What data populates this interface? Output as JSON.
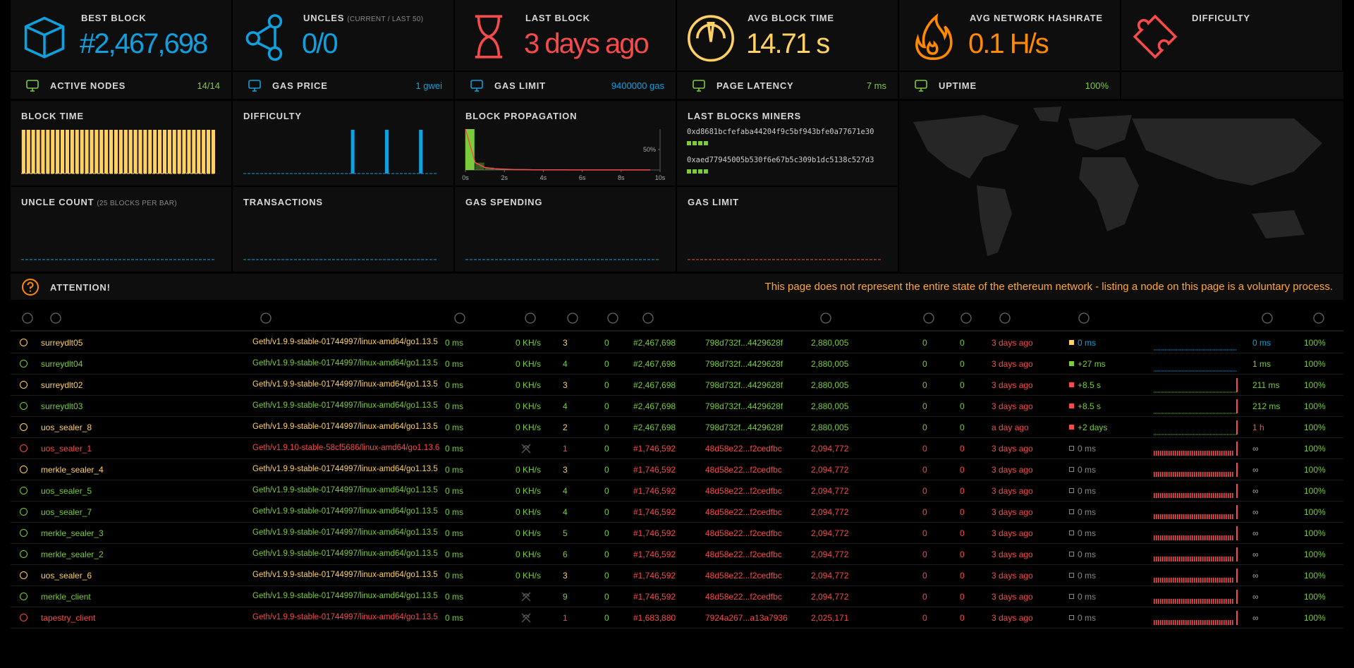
{
  "stats": [
    {
      "title": "BEST BLOCK",
      "value": "#2,467,698",
      "color": "#10a0de"
    },
    {
      "title": "UNCLES",
      "subtitle": "(CURRENT / LAST 50)",
      "value": "0/0",
      "color": "#10a0de"
    },
    {
      "title": "LAST BLOCK",
      "value": "3 days ago",
      "color": "#f74b4b"
    },
    {
      "title": "AVG BLOCK TIME",
      "value": "14.71 s",
      "color": "#ffd162"
    },
    {
      "title": "AVG NETWORK HASHRATE",
      "value": "0.1 H/s",
      "color": "#ff8a00"
    },
    {
      "title": "DIFFICULTY",
      "color": "#f74b4b"
    }
  ],
  "summary": [
    {
      "title": "ACTIVE NODES",
      "value": "14/14",
      "color": "#7bcc3a"
    },
    {
      "title": "GAS PRICE",
      "value": "1 gwei",
      "color": "#10a0de"
    },
    {
      "title": "GAS LIMIT",
      "value": "9400000 gas",
      "color": "#10a0de"
    },
    {
      "title": "PAGE LATENCY",
      "value": "7 ms",
      "color": "#7bcc3a"
    },
    {
      "title": "UPTIME",
      "value": "100%",
      "color": "#7bcc3a"
    }
  ],
  "charts": [
    {
      "title": "BLOCK TIME",
      "type": "bar",
      "color": "#ffd162",
      "values": [
        15,
        15,
        15,
        15,
        15,
        15,
        15,
        15,
        15,
        15,
        15,
        15,
        15,
        15,
        15,
        15,
        15,
        15,
        15,
        15,
        15,
        15,
        15,
        15,
        15,
        15,
        15,
        15,
        15,
        15,
        15,
        15,
        15,
        15,
        15,
        15,
        15,
        15,
        15,
        15
      ]
    },
    {
      "title": "DIFFICULTY",
      "type": "bar",
      "color": "#10a0de",
      "values": [
        0,
        0,
        0,
        0,
        0,
        0,
        0,
        0,
        0,
        0,
        0,
        0,
        0,
        0,
        0,
        0,
        0,
        0,
        0,
        0,
        0,
        0,
        1,
        0,
        0,
        0,
        0,
        0,
        0,
        1,
        0,
        0,
        0,
        0,
        0,
        0,
        1,
        0,
        0,
        0
      ]
    },
    {
      "title": "BLOCK PROPAGATION",
      "type": "histogram",
      "color": "#7bcc3a",
      "line_color": "#f74b4b",
      "bins": [
        0,
        0.5,
        1,
        1.5,
        2,
        2.5,
        3,
        3.5,
        4,
        4.5,
        5,
        5.5,
        6,
        6.5,
        7,
        7.5,
        8,
        8.5,
        9,
        9.5,
        10
      ],
      "values": [
        100,
        18,
        6,
        3,
        2,
        1,
        1,
        0.5,
        0.5,
        0.3,
        0.3,
        0.2,
        0.2,
        0.1,
        0.1,
        0.1,
        0.1,
        0.1,
        0.1,
        0.1
      ],
      "xlim": [
        0,
        10
      ],
      "xticks": [
        {
          "value": 0,
          "label": "0s"
        },
        {
          "value": 2,
          "label": "2s"
        },
        {
          "value": 4,
          "label": "4s"
        },
        {
          "value": 6,
          "label": "6s"
        },
        {
          "value": 8,
          "label": "8s"
        },
        {
          "value": 10,
          "label": "10s"
        }
      ],
      "ylim": [
        0,
        100
      ],
      "yticks": [
        {
          "value": 50,
          "label": "50%"
        }
      ]
    },
    {
      "title": "LAST BLOCKS MINERS",
      "type": "miners",
      "color": "#7bcc3a",
      "miners": [
        {
          "address": "0xd8681bcfefaba44204f9c5bf943bfe0a77671e30",
          "blocks": 4
        },
        {
          "address": "0xaed77945005b530f6e67b5c309b1dc5138c527d3",
          "blocks": 4
        }
      ]
    },
    {
      "title": "UNCLE COUNT",
      "subtitle": "(25 BLOCKS PER BAR)",
      "type": "bar",
      "color": "#10a0de"
    },
    {
      "title": "TRANSACTIONS",
      "type": "bar",
      "color": "#10a0de"
    },
    {
      "title": "GAS SPENDING",
      "type": "bar",
      "color": "#10a0de"
    },
    {
      "title": "GAS LIMIT",
      "type": "bar",
      "color": "#f74b4b"
    }
  ],
  "attention": {
    "title": "ATTENTION!",
    "message": "This page does not represent the entire state of the ethereum network - listing a node on this page is a voluntary process."
  },
  "nodes": {
    "rows": [
      {
        "name": "surreydlt05",
        "name_color": "#ffd162",
        "client": "Geth/v1.9.9-stable-01744997/linux-amd64/go1.13.5",
        "latency": "0 ms",
        "hashrate": "0 KH/s",
        "peers": 3,
        "peers_color": "#ffd162",
        "pending": 0,
        "block": "#2,467,698",
        "hash": "798d732f...4429628f",
        "difficulty": "2,880,005",
        "uncles": 0,
        "transactions": 0,
        "block_color": "#7bcc3a",
        "last_block": "3 days ago",
        "prop_square": "#ffd162",
        "propagation": "0 ms",
        "prop_color": "#10a0de",
        "prop_chart": "line",
        "prop_chart_color": "#10a0de",
        "prop_spike": false,
        "avg_propagation": "0 ms",
        "avg_color": "#10a0de",
        "uptime": "100%"
      },
      {
        "name": "surreydlt04",
        "name_color": "#7bcc3a",
        "client": "Geth/v1.9.9-stable-01744997/linux-amd64/go1.13.5",
        "latency": "0 ms",
        "hashrate": "0 KH/s",
        "peers": 4,
        "peers_color": "#7bcc3a",
        "pending": 0,
        "block": "#2,467,698",
        "hash": "798d732f...4429628f",
        "difficulty": "2,880,005",
        "uncles": 0,
        "transactions": 0,
        "block_color": "#7bcc3a",
        "last_block": "3 days ago",
        "prop_square": "#7bcc3a",
        "propagation": "+27 ms",
        "prop_color": "#7bcc3a",
        "prop_chart": "line",
        "prop_chart_color": "#10a0de",
        "prop_spike": false,
        "avg_propagation": "1 ms",
        "avg_color": "#7bcc3a",
        "uptime": "100%"
      },
      {
        "name": "surreydlt02",
        "name_color": "#ffd162",
        "client": "Geth/v1.9.9-stable-01744997/linux-amd64/go1.13.5",
        "latency": "0 ms",
        "hashrate": "0 KH/s",
        "peers": 3,
        "peers_color": "#ffd162",
        "pending": 0,
        "block": "#2,467,698",
        "hash": "798d732f...4429628f",
        "difficulty": "2,880,005",
        "uncles": 0,
        "transactions": 0,
        "block_color": "#7bcc3a",
        "last_block": "3 days ago",
        "prop_square": "#f74b4b",
        "propagation": "+8.5 s",
        "prop_color": "#7bcc3a",
        "prop_chart": "line",
        "prop_chart_color": "#7bcc3a",
        "prop_spike": true,
        "avg_propagation": "211 ms",
        "avg_color": "#7bcc3a",
        "uptime": "100%"
      },
      {
        "name": "surreydlt03",
        "name_color": "#7bcc3a",
        "client": "Geth/v1.9.9-stable-01744997/linux-amd64/go1.13.5",
        "latency": "0 ms",
        "hashrate": "0 KH/s",
        "peers": 4,
        "peers_color": "#7bcc3a",
        "pending": 0,
        "block": "#2,467,698",
        "hash": "798d732f...4429628f",
        "difficulty": "2,880,005",
        "uncles": 0,
        "transactions": 0,
        "block_color": "#7bcc3a",
        "last_block": "3 days ago",
        "prop_square": "#f74b4b",
        "propagation": "+8.5 s",
        "prop_color": "#7bcc3a",
        "prop_chart": "line",
        "prop_chart_color": "#7bcc3a",
        "prop_spike": true,
        "avg_propagation": "212 ms",
        "avg_color": "#7bcc3a",
        "uptime": "100%"
      },
      {
        "name": "uos_sealer_8",
        "name_color": "#ffd162",
        "client": "Geth/v1.9.9-stable-01744997/linux-amd64/go1.13.5",
        "latency": "0 ms",
        "hashrate": "0 KH/s",
        "peers": 2,
        "peers_color": "#ffd162",
        "pending": 0,
        "block": "#2,467,698",
        "hash": "798d732f...4429628f",
        "difficulty": "2,880,005",
        "uncles": 0,
        "transactions": 0,
        "block_color": "#7bcc3a",
        "last_block": "a day ago",
        "prop_square": "#f74b4b",
        "propagation": "+2 days",
        "prop_color": "#7bcc3a",
        "prop_chart": "line",
        "prop_chart_color": "#7bcc3a",
        "prop_spike": true,
        "avg_propagation": "1 h",
        "avg_color": "#f74b4b",
        "uptime": "100%"
      },
      {
        "name": "uos_sealer_1",
        "name_color": "#f74b4b",
        "client": "Geth/v1.9.10-stable-58cf5686/linux-amd64/go1.13.6",
        "latency": "0 ms",
        "hashrate": null,
        "peers": 1,
        "peers_color": "#f74b4b",
        "pending": 0,
        "block": "#1,746,592",
        "hash": "48d58e22...f2cedfbc",
        "difficulty": "2,094,772",
        "uncles": 0,
        "transactions": 0,
        "block_color": "#f74b4b",
        "last_block": "3 days ago",
        "prop_square": "none",
        "propagation": "0 ms",
        "prop_color": "#888888",
        "prop_chart": "bars",
        "prop_chart_color": "#f74b4b",
        "prop_spike": true,
        "avg_propagation": "∞",
        "avg_color": "#aaaaaa",
        "uptime": "100%"
      },
      {
        "name": "merkle_sealer_4",
        "name_color": "#ffd162",
        "client": "Geth/v1.9.9-stable-01744997/linux-amd64/go1.13.5",
        "latency": "0 ms",
        "hashrate": "0 KH/s",
        "peers": 3,
        "peers_color": "#ffd162",
        "pending": 0,
        "block": "#1,746,592",
        "hash": "48d58e22...f2cedfbc",
        "difficulty": "2,094,772",
        "uncles": 0,
        "transactions": 0,
        "block_color": "#f74b4b",
        "last_block": "3 days ago",
        "prop_square": "none",
        "propagation": "0 ms",
        "prop_color": "#888888",
        "prop_chart": "bars",
        "prop_chart_color": "#f74b4b",
        "prop_spike": true,
        "avg_propagation": "∞",
        "avg_color": "#aaaaaa",
        "uptime": "100%"
      },
      {
        "name": "uos_sealer_5",
        "name_color": "#7bcc3a",
        "client": "Geth/v1.9.9-stable-01744997/linux-amd64/go1.13.5",
        "latency": "0 ms",
        "hashrate": "0 KH/s",
        "peers": 4,
        "peers_color": "#7bcc3a",
        "pending": 0,
        "block": "#1,746,592",
        "hash": "48d58e22...f2cedfbc",
        "difficulty": "2,094,772",
        "uncles": 0,
        "transactions": 0,
        "block_color": "#f74b4b",
        "last_block": "3 days ago",
        "prop_square": "none",
        "propagation": "0 ms",
        "prop_color": "#888888",
        "prop_chart": "bars",
        "prop_chart_color": "#f74b4b",
        "prop_spike": true,
        "avg_propagation": "∞",
        "avg_color": "#aaaaaa",
        "uptime": "100%"
      },
      {
        "name": "uos_sealer_7",
        "name_color": "#7bcc3a",
        "client": "Geth/v1.9.9-stable-01744997/linux-amd64/go1.13.5",
        "latency": "0 ms",
        "hashrate": "0 KH/s",
        "peers": 4,
        "peers_color": "#7bcc3a",
        "pending": 0,
        "block": "#1,746,592",
        "hash": "48d58e22...f2cedfbc",
        "difficulty": "2,094,772",
        "uncles": 0,
        "transactions": 0,
        "block_color": "#f74b4b",
        "last_block": "3 days ago",
        "prop_square": "none",
        "propagation": "0 ms",
        "prop_color": "#888888",
        "prop_chart": "bars",
        "prop_chart_color": "#f74b4b",
        "prop_spike": true,
        "avg_propagation": "∞",
        "avg_color": "#aaaaaa",
        "uptime": "100%"
      },
      {
        "name": "merkle_sealer_3",
        "name_color": "#7bcc3a",
        "client": "Geth/v1.9.9-stable-01744997/linux-amd64/go1.13.5",
        "latency": "0 ms",
        "hashrate": "0 KH/s",
        "peers": 5,
        "peers_color": "#7bcc3a",
        "pending": 0,
        "block": "#1,746,592",
        "hash": "48d58e22...f2cedfbc",
        "difficulty": "2,094,772",
        "uncles": 0,
        "transactions": 0,
        "block_color": "#f74b4b",
        "last_block": "3 days ago",
        "prop_square": "none",
        "propagation": "0 ms",
        "prop_color": "#888888",
        "prop_chart": "bars",
        "prop_chart_color": "#f74b4b",
        "prop_spike": true,
        "avg_propagation": "∞",
        "avg_color": "#aaaaaa",
        "uptime": "100%"
      },
      {
        "name": "merkle_sealer_2",
        "name_color": "#7bcc3a",
        "client": "Geth/v1.9.9-stable-01744997/linux-amd64/go1.13.5",
        "latency": "0 ms",
        "hashrate": "0 KH/s",
        "peers": 6,
        "peers_color": "#7bcc3a",
        "pending": 0,
        "block": "#1,746,592",
        "hash": "48d58e22...f2cedfbc",
        "difficulty": "2,094,772",
        "uncles": 0,
        "transactions": 0,
        "block_color": "#f74b4b",
        "last_block": "3 days ago",
        "prop_square": "none",
        "propagation": "0 ms",
        "prop_color": "#888888",
        "prop_chart": "bars",
        "prop_chart_color": "#f74b4b",
        "prop_spike": true,
        "avg_propagation": "∞",
        "avg_color": "#aaaaaa",
        "uptime": "100%"
      },
      {
        "name": "uos_sealer_6",
        "name_color": "#ffd162",
        "client": "Geth/v1.9.9-stable-01744997/linux-amd64/go1.13.5",
        "latency": "0 ms",
        "hashrate": "0 KH/s",
        "peers": 3,
        "peers_color": "#ffd162",
        "pending": 0,
        "block": "#1,746,592",
        "hash": "48d58e22...f2cedfbc",
        "difficulty": "2,094,772",
        "uncles": 0,
        "transactions": 0,
        "block_color": "#f74b4b",
        "last_block": "3 days ago",
        "prop_square": "none",
        "propagation": "0 ms",
        "prop_color": "#888888",
        "prop_chart": "bars",
        "prop_chart_color": "#f74b4b",
        "prop_spike": true,
        "avg_propagation": "∞",
        "avg_color": "#aaaaaa",
        "uptime": "100%"
      },
      {
        "name": "merkle_client",
        "name_color": "#7bcc3a",
        "client": "Geth/v1.9.9-stable-01744997/linux-amd64/go1.13.5",
        "latency": "0 ms",
        "hashrate": null,
        "peers": 9,
        "peers_color": "#7bcc3a",
        "pending": 0,
        "block": "#1,746,592",
        "hash": "48d58e22...f2cedfbc",
        "difficulty": "2,094,772",
        "uncles": 0,
        "transactions": 0,
        "block_color": "#f74b4b",
        "last_block": "3 days ago",
        "prop_square": "none",
        "propagation": "0 ms",
        "prop_color": "#888888",
        "prop_chart": "bars",
        "prop_chart_color": "#f74b4b",
        "prop_spike": true,
        "avg_propagation": "∞",
        "avg_color": "#aaaaaa",
        "uptime": "100%"
      },
      {
        "name": "tapestry_client",
        "name_color": "#f74b4b",
        "client": "Geth/v1.9.9-stable-01744997/linux-amd64/go1.13.5",
        "latency": "0 ms",
        "hashrate": null,
        "peers": 1,
        "peers_color": "#f74b4b",
        "pending": 0,
        "block": "#1,683,880",
        "hash": "7924a267...a13a7936",
        "difficulty": "2,025,171",
        "uncles": 0,
        "transactions": 0,
        "block_color": "#f74b4b",
        "last_block": "3 days ago",
        "prop_square": "none",
        "propagation": "0 ms",
        "prop_color": "#888888",
        "prop_chart": "bars",
        "prop_chart_color": "#f74b4b",
        "prop_spike": true,
        "avg_propagation": "∞",
        "avg_color": "#aaaaaa",
        "uptime": "100%"
      }
    ]
  }
}
